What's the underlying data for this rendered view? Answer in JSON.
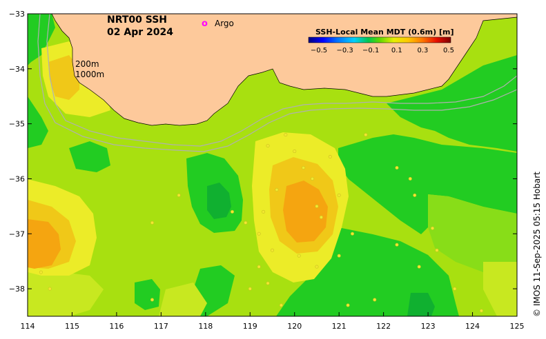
{
  "title": {
    "line1": "NRT00 SSH",
    "line2": "02 Apr 2024"
  },
  "argo_legend": {
    "symbol": "o",
    "label": "Argo",
    "color": "#ff00ff"
  },
  "colorbar": {
    "title": "SSH-Local Mean MDT (0.6m) [m]",
    "ticks": [
      "−0.5",
      "−0.3",
      "−0.1",
      "0.1",
      "0.3",
      "0.5"
    ],
    "colors": [
      "#00007f",
      "#0000ff",
      "#0060ff",
      "#00c0ff",
      "#00e0a0",
      "#00c040",
      "#40d000",
      "#a0e000",
      "#ffff00",
      "#ffc000",
      "#ff8000",
      "#ff3000",
      "#c00000",
      "#7f0000"
    ]
  },
  "contour_labels": {
    "c200": "200m",
    "c1000": "1000m"
  },
  "credit": "© IMOS 11-Sep-2025 05:15 Hobart",
  "axes": {
    "x_ticks": [
      "114",
      "115",
      "116",
      "117",
      "118",
      "119",
      "120",
      "121",
      "122",
      "123",
      "124",
      "125"
    ],
    "y_ticks": [
      "−33",
      "−34",
      "−35",
      "−36",
      "−37",
      "−38"
    ],
    "lon_range": [
      114,
      125
    ],
    "lat_range": [
      -33,
      -38.5
    ]
  },
  "colors": {
    "land": "#fdc99b",
    "ocean_base": "#a8e010",
    "level_green": "#22cc22",
    "level_darkgreen": "#10b030",
    "level_lightgreen": "#88dd18",
    "level_yellowgreen": "#c8e820",
    "level_yellow": "#ecec28",
    "level_orange": "#f5a510",
    "level_lightorange": "#f0c818",
    "bathy_line": "#b0b0b0"
  },
  "ssh_features": [
    {
      "name": "eddy-west",
      "lon": 114.3,
      "lat": -37.1,
      "level": 0.3
    },
    {
      "name": "eddy-central",
      "lon": 120.2,
      "lat": -36.6,
      "level": 0.3
    },
    {
      "name": "cool-core",
      "lon": 118.2,
      "lat": -36.4,
      "level": -0.1
    }
  ]
}
